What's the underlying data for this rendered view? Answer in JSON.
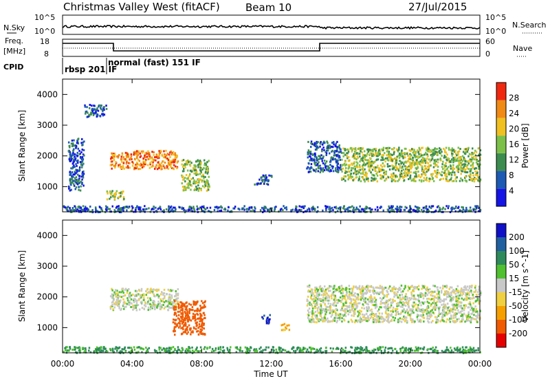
{
  "header": {
    "radar": "Christmas Valley West (fitACF)",
    "beam": "Beam 10",
    "date": "27/Jul/2015"
  },
  "top_panel": {
    "nsky_label": "N.Sky",
    "nsky_ticks": [
      "10^5",
      "10^0"
    ],
    "nsearch_label": "N.Search",
    "nsearch_ticks": [
      "10^5",
      "10^0"
    ],
    "freq_label_line1": "Freq.",
    "freq_label_line2": "[MHz]",
    "freq_ticks": [
      "18",
      "8"
    ],
    "nave_label": "Nave",
    "nave_ticks": [
      "60",
      "0"
    ],
    "cpid_label": "CPID",
    "cpid_modes": [
      "rbsp 201 IF",
      "normal (fast) 151 IF"
    ]
  },
  "x_axis": {
    "label": "Time UT",
    "ticks": [
      "00:00",
      "04:00",
      "08:00",
      "12:00",
      "16:00",
      "20:00",
      "00:00"
    ]
  },
  "chart_data": [
    {
      "type": "heatmap",
      "title": "",
      "xlabel": "Time UT",
      "ylabel": "Slant Range [km]",
      "xlim": [
        0,
        24
      ],
      "ylim": [
        180,
        4500
      ],
      "yticks": [
        "4000",
        "3000",
        "2000",
        "1000"
      ],
      "colorbar": {
        "label": "Power [dB]",
        "ticks": [
          "28",
          "24",
          "20",
          "16",
          "12",
          "8",
          "4"
        ],
        "colors": [
          "#1414e6",
          "#1c5ab4",
          "#3c8c50",
          "#7cc04a",
          "#f0c020",
          "#f08a14",
          "#f02810"
        ]
      },
      "regions": [
        {
          "t": [
            2.7,
            6.6
          ],
          "r": [
            1600,
            2200
          ],
          "level": "high"
        },
        {
          "t": [
            6.8,
            8.4
          ],
          "r": [
            900,
            1900
          ],
          "level": "mid"
        },
        {
          "t": [
            2.5,
            3.5
          ],
          "r": [
            600,
            900
          ],
          "level": "mid"
        },
        {
          "t": [
            0.3,
            1.2
          ],
          "r": [
            900,
            2600
          ],
          "level": "low"
        },
        {
          "t": [
            1.2,
            2.5
          ],
          "r": [
            3300,
            3700
          ],
          "level": "low"
        },
        {
          "t": [
            11.0,
            12.0
          ],
          "r": [
            1100,
            1400
          ],
          "level": "low"
        },
        {
          "t": [
            14.0,
            16.0
          ],
          "r": [
            1500,
            2500
          ],
          "level": "low"
        },
        {
          "t": [
            16.0,
            24.0
          ],
          "r": [
            1200,
            2300
          ],
          "level": "mid"
        },
        {
          "t": [
            0.0,
            24.0
          ],
          "r": [
            200,
            400
          ],
          "level": "low"
        }
      ]
    },
    {
      "type": "heatmap",
      "title": "",
      "xlabel": "Time UT",
      "ylabel": "Slant Range [km]",
      "xlim": [
        0,
        24
      ],
      "ylim": [
        180,
        4500
      ],
      "yticks": [
        "4000",
        "3000",
        "2000",
        "1000"
      ],
      "colorbar": {
        "label": "Velocity [m s^-1]",
        "ticks": [
          "200",
          "100",
          "50",
          "15",
          "-15",
          "-50",
          "-100",
          "-200"
        ],
        "colors": [
          "#e60000",
          "#f05a00",
          "#f5a000",
          "#f0d040",
          "#c8c8c8",
          "#50c030",
          "#2e8a5a",
          "#2060a0",
          "#1010c8"
        ]
      },
      "regions": [
        {
          "t": [
            2.7,
            6.6
          ],
          "r": [
            1600,
            2300
          ],
          "v": 0
        },
        {
          "t": [
            6.3,
            8.2
          ],
          "r": [
            800,
            1900
          ],
          "v": -150
        },
        {
          "t": [
            11.4,
            11.9
          ],
          "r": [
            1150,
            1450
          ],
          "v": 200
        },
        {
          "t": [
            12.5,
            13.0
          ],
          "r": [
            950,
            1150
          ],
          "v": -60
        },
        {
          "t": [
            14.0,
            24.0
          ],
          "r": [
            1200,
            2400
          ],
          "v": 0
        },
        {
          "t": [
            0.0,
            24.0
          ],
          "r": [
            200,
            400
          ],
          "v": 60
        }
      ]
    }
  ]
}
